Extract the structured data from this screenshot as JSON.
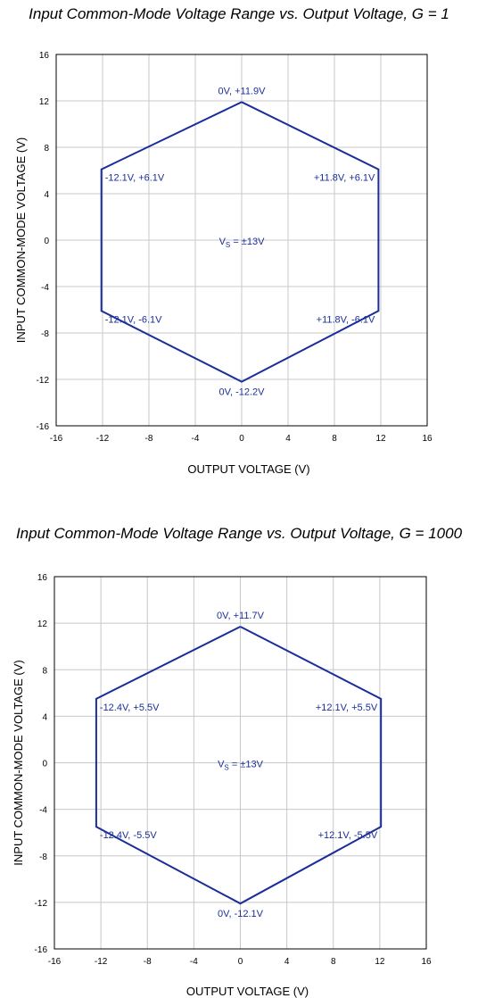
{
  "charts": [
    {
      "title": "Input Common-Mode Voltage Range vs. Output Voltage, G = 1"
    },
    {
      "title": "Input Common-Mode Voltage Range vs. Output Voltage, G = 1000"
    }
  ],
  "colors": {
    "series": "#1a2e9a",
    "grid": "#c8c8c8",
    "frame": "#000000"
  },
  "chart_data": [
    {
      "type": "line",
      "title": "Input Common-Mode Voltage Range vs. Output Voltage, G = 1",
      "xlabel": "OUTPUT VOLTAGE (V)",
      "ylabel": "INPUT COMMON-MODE VOLTAGE (V)",
      "xlim": [
        -16,
        16
      ],
      "ylim": [
        -16,
        16
      ],
      "xticks": [
        -16,
        -12,
        -8,
        -4,
        0,
        4,
        8,
        12,
        16
      ],
      "yticks": [
        -16,
        -12,
        -8,
        -4,
        0,
        4,
        8,
        12,
        16
      ],
      "grid": true,
      "annotation": "VS = ±13V",
      "series": [
        {
          "x": [
            0,
            11.8,
            11.8,
            0,
            -12.1,
            -12.1,
            0
          ],
          "y": [
            11.9,
            6.1,
            -6.1,
            -12.2,
            -6.1,
            6.1,
            11.9
          ]
        }
      ],
      "point_labels": [
        {
          "text": "0V, +11.9V",
          "x": 0,
          "y": 11.9,
          "pos": "top"
        },
        {
          "text": "+11.8V, +6.1V",
          "x": 11.8,
          "y": 6.1,
          "pos": "left"
        },
        {
          "text": "+11.8V, -6.1V",
          "x": 11.8,
          "y": -6.1,
          "pos": "left"
        },
        {
          "text": "0V, -12.2V",
          "x": 0,
          "y": -12.2,
          "pos": "bottom"
        },
        {
          "text": "-12.1V, -6.1V",
          "x": -12.1,
          "y": -6.1,
          "pos": "right"
        },
        {
          "text": "-12.1V, +6.1V",
          "x": -12.1,
          "y": 6.1,
          "pos": "right"
        }
      ]
    },
    {
      "type": "line",
      "title": "Input Common-Mode Voltage Range vs. Output Voltage, G = 1000",
      "xlabel": "OUTPUT VOLTAGE (V)",
      "ylabel": "INPUT COMMON-MODE VOLTAGE (V)",
      "xlim": [
        -16,
        16
      ],
      "ylim": [
        -16,
        16
      ],
      "xticks": [
        -16,
        -12,
        -8,
        -4,
        0,
        4,
        8,
        12,
        16
      ],
      "yticks": [
        -16,
        -12,
        -8,
        -4,
        0,
        4,
        8,
        12,
        16
      ],
      "grid": true,
      "annotation": "VS = ±13V",
      "series": [
        {
          "x": [
            0,
            12.1,
            12.1,
            0,
            -12.4,
            -12.4,
            0
          ],
          "y": [
            11.7,
            5.5,
            -5.5,
            -12.1,
            -5.5,
            5.5,
            11.7
          ]
        }
      ],
      "point_labels": [
        {
          "text": "0V, +11.7V",
          "x": 0,
          "y": 11.7,
          "pos": "top"
        },
        {
          "text": "+12.1V, +5.5V",
          "x": 12.1,
          "y": 5.5,
          "pos": "left"
        },
        {
          "text": "+12.1V, -5.5V",
          "x": 12.1,
          "y": -5.5,
          "pos": "left"
        },
        {
          "text": "0V, -12.1V",
          "x": 0,
          "y": -12.1,
          "pos": "bottom"
        },
        {
          "text": "-12.4V, -5.5V",
          "x": -12.4,
          "y": -5.5,
          "pos": "right"
        },
        {
          "text": "-12.4V, +5.5V",
          "x": -12.4,
          "y": 5.5,
          "pos": "right"
        }
      ]
    }
  ]
}
